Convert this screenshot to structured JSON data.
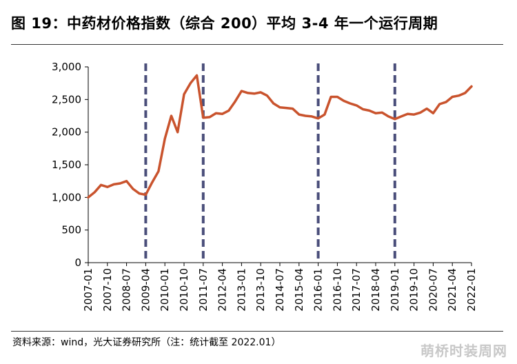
{
  "header": {
    "title": "图 19：中药材价格指数（综合 200）平均 3-4 年一个运行周期"
  },
  "footer": {
    "source": "资料来源：wind，光大证券研究所（注：统计截至 2022.01）",
    "watermark": "萌桥时装周网"
  },
  "chart_data": {
    "type": "line",
    "title": "",
    "xlabel": "",
    "ylabel": "",
    "ylim": [
      0,
      3000
    ],
    "yticks": [
      0,
      500,
      1000,
      1500,
      2000,
      2500,
      3000
    ],
    "ytick_labels": [
      "0",
      "500",
      "1,000",
      "1,500",
      "2,000",
      "2,500",
      "3,000"
    ],
    "xtick_labels": [
      "2007-01",
      "2007-10",
      "2008-07",
      "2009-04",
      "2010-01",
      "2010-10",
      "2011-07",
      "2012-04",
      "2013-01",
      "2013-10",
      "2014-07",
      "2015-04",
      "2016-01",
      "2016-10",
      "2017-07",
      "2018-04",
      "2019-01",
      "2019-10",
      "2020-07",
      "2021-04",
      "2022-01"
    ],
    "grid": false,
    "line_color": "#C9532D",
    "cycle_line_color": "#4A4E7A",
    "cycle_markers": [
      "2009-04",
      "2011-07",
      "2016-01",
      "2019-01"
    ],
    "series": [
      {
        "x": [
          "2007-01",
          "2007-04",
          "2007-07",
          "2007-10",
          "2008-01",
          "2008-04",
          "2008-07",
          "2008-10",
          "2009-01",
          "2009-04",
          "2009-07",
          "2009-10",
          "2010-01",
          "2010-04",
          "2010-07",
          "2010-10",
          "2011-01",
          "2011-04",
          "2011-07",
          "2011-10",
          "2012-01",
          "2012-04",
          "2012-07",
          "2012-10",
          "2013-01",
          "2013-04",
          "2013-07",
          "2013-10",
          "2014-01",
          "2014-04",
          "2014-07",
          "2014-10",
          "2015-01",
          "2015-04",
          "2015-07",
          "2015-10",
          "2016-01",
          "2016-04",
          "2016-07",
          "2016-10",
          "2017-01",
          "2017-04",
          "2017-07",
          "2017-10",
          "2018-01",
          "2018-04",
          "2018-07",
          "2018-10",
          "2019-01",
          "2019-04",
          "2019-07",
          "2019-10",
          "2020-01",
          "2020-04",
          "2020-07",
          "2020-10",
          "2021-01",
          "2021-04",
          "2021-07",
          "2021-10",
          "2022-01"
        ],
        "values": [
          1000,
          1080,
          1190,
          1160,
          1200,
          1215,
          1250,
          1130,
          1060,
          1040,
          1230,
          1400,
          1900,
          2250,
          2000,
          2580,
          2750,
          2870,
          2220,
          2230,
          2290,
          2280,
          2330,
          2470,
          2630,
          2600,
          2590,
          2610,
          2560,
          2440,
          2380,
          2370,
          2360,
          2270,
          2250,
          2240,
          2210,
          2270,
          2540,
          2540,
          2480,
          2440,
          2410,
          2350,
          2330,
          2290,
          2300,
          2240,
          2200,
          2240,
          2280,
          2270,
          2300,
          2360,
          2290,
          2430,
          2460,
          2540,
          2560,
          2600,
          2700
        ]
      }
    ]
  }
}
